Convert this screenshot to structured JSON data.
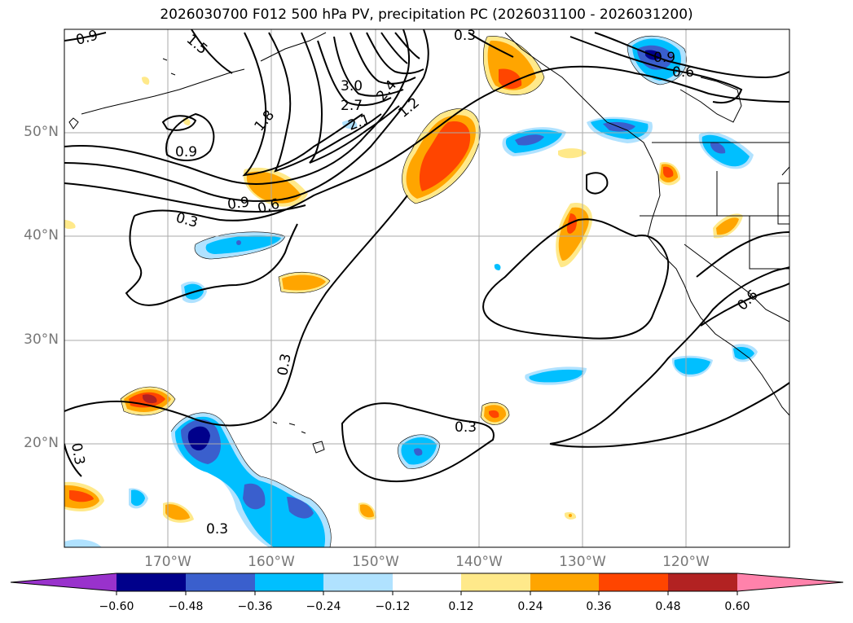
{
  "title": "2026030700 F012 500 hPa PV, precipitation PC (2026031100 - 2026031200)",
  "latitude_labels": [
    "50°N",
    "40°N",
    "30°N",
    "20°N"
  ],
  "longitude_labels": [
    "170°W",
    "160°W",
    "150°W",
    "140°W",
    "130°W",
    "120°W"
  ],
  "contour_labels": [
    "0.9",
    "1.5",
    "3.0",
    "2.7",
    "2.4",
    "2.1",
    "1.2",
    "1.8",
    "0.9",
    "0.9",
    "0.6",
    "0.3",
    "0.3",
    "0.3",
    "0.3",
    "0.3",
    "0.3",
    "0.9",
    "0.6",
    "0.6"
  ],
  "colorbar": {
    "ticks": [
      "−0.60",
      "−0.48",
      "−0.36",
      "−0.24",
      "−0.12",
      "0.12",
      "0.24",
      "0.36",
      "0.48",
      "0.60"
    ],
    "colors": {
      "extend_low": "#9932cc",
      "c1": "#00008b",
      "c2": "#3a5fcd",
      "c3": "#00bfff",
      "c4": "#b0e2ff",
      "c5": "#ffffff",
      "c6": "#ffe98a",
      "c7": "#ffa500",
      "c8": "#ff4500",
      "c9": "#b22222",
      "extend_high": "#ff82ab"
    }
  }
}
